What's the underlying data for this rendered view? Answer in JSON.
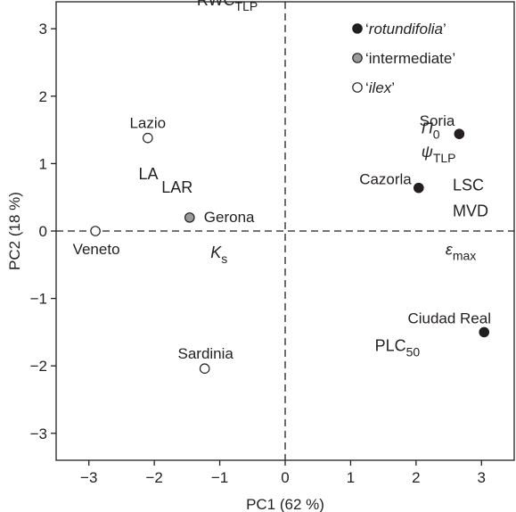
{
  "chart_data": {
    "type": "scatter",
    "xlabel": "PC1 (62 %)",
    "ylabel": "PC2 (18 %)",
    "xlim": [
      -3.5,
      3.5
    ],
    "ylim": [
      -3.4,
      3.4
    ],
    "xticks": [
      -3,
      -2,
      -1,
      0,
      1,
      2,
      3
    ],
    "yticks": [
      -3,
      -2,
      -1,
      0,
      1,
      2,
      3
    ],
    "xtick_labels": [
      "−3",
      "−2",
      "−1",
      "0",
      "1",
      "2",
      "3"
    ],
    "ytick_labels": [
      "−3",
      "−2",
      "−1",
      "0",
      "1",
      "2",
      "3"
    ],
    "grid": false,
    "zero_lines": "dashed",
    "legend_position": "top-right",
    "legend": [
      {
        "label": "rotundifolia",
        "fill": "#231f20"
      },
      {
        "label": "intermediate",
        "fill": "#9a9a9a"
      },
      {
        "label": "ilex",
        "fill": "#ffffff"
      }
    ],
    "series": [
      {
        "name": "rotundifolia",
        "fill": "#231f20",
        "points": [
          {
            "label": "Soria",
            "x": 2.66,
            "y": 1.44
          },
          {
            "label": "Cazorla",
            "x": 2.04,
            "y": 0.64
          },
          {
            "label": "Ciudad Real",
            "x": 3.04,
            "y": -1.5
          }
        ]
      },
      {
        "name": "intermediate",
        "fill": "#9a9a9a",
        "points": [
          {
            "label": "Gerona",
            "x": -1.46,
            "y": 0.2
          }
        ]
      },
      {
        "name": "ilex",
        "fill": "#ffffff",
        "points": [
          {
            "label": "Lazio",
            "x": -2.1,
            "y": 1.38
          },
          {
            "label": "Veneto",
            "x": -2.9,
            "y": 0.0
          },
          {
            "label": "Sardinia",
            "x": -1.23,
            "y": -2.04
          }
        ]
      }
    ],
    "variable_labels": [
      {
        "text": "RWC",
        "sub": "TLP",
        "italic": false,
        "x": -1.35,
        "y": 3.35
      },
      {
        "text": "Π",
        "sub": "0",
        "italic": true,
        "x": 2.08,
        "y": 1.45
      },
      {
        "text": "ψ",
        "sub": "TLP",
        "italic": true,
        "x": 2.08,
        "y": 1.1
      },
      {
        "text": "LSC",
        "sub": "",
        "italic": false,
        "x": 2.56,
        "y": 0.6
      },
      {
        "text": "MVD",
        "sub": "",
        "italic": false,
        "x": 2.56,
        "y": 0.22
      },
      {
        "text": "LA",
        "sub": "",
        "italic": false,
        "x": -2.24,
        "y": 0.77
      },
      {
        "text": "LAR",
        "sub": "",
        "italic": false,
        "x": -1.89,
        "y": 0.57
      },
      {
        "text": "K",
        "sub": "s",
        "italic": true,
        "x": -1.14,
        "y": -0.4
      },
      {
        "text": "ε",
        "sub": "max",
        "italic": true,
        "x": 2.45,
        "y": -0.35
      },
      {
        "text": "PLC",
        "sub": "50",
        "italic": false,
        "x": 1.37,
        "y": -1.78
      }
    ]
  }
}
